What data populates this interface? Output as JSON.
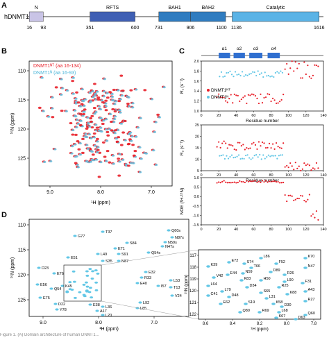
{
  "panel_a": {
    "letter": "A",
    "protein_label": "hDNMT1",
    "domains": [
      {
        "name": "N",
        "start": 16,
        "end": 93,
        "color": "#c9c4e6"
      },
      {
        "name": "RFTS",
        "start": 351,
        "end": 600,
        "color": "#3f5fb4"
      },
      {
        "name": "BAH1",
        "start": 731,
        "end": 906,
        "color": "#2f7cc0"
      },
      {
        "name": "BAH2",
        "start": 906,
        "end": 1100,
        "color": "#2f7cc0"
      },
      {
        "name": "Catalytic",
        "start": 1136,
        "end": 1616,
        "color": "#5ab3e6"
      }
    ],
    "tick_labels": [
      "16",
      "93",
      "351",
      "600",
      "731",
      "906",
      "1100",
      "1136",
      "1616"
    ]
  },
  "panel_b": {
    "letter": "B",
    "legend": [
      {
        "label": "DNMT1ᴺᵀ (aa 16-134)",
        "color": "#e8202a"
      },
      {
        "label": "DNMT1ᴺ (aa 16-93)",
        "color": "#63c7e6"
      }
    ],
    "xlabel": "¹H (ppm)",
    "ylabel": "¹⁵N (ppm)",
    "xticks": [
      "9.0",
      "8.0",
      "7.0"
    ],
    "yticks": [
      "110",
      "115",
      "120",
      "125"
    ]
  },
  "panel_c": {
    "letter": "C",
    "helices": [
      "α1",
      "α2",
      "α3",
      "α4"
    ],
    "xlabel": "Residue number",
    "xticks": [
      "0",
      "20",
      "40",
      "60",
      "80",
      "100",
      "120",
      "140"
    ],
    "plot1": {
      "ylabel": "R₁ (s⁻¹)",
      "yticks": [
        "1.0",
        "1.2",
        "1.4",
        "1.6",
        "1.8",
        "2.0"
      ],
      "legend": [
        "DNMT1ᴺᵀ",
        "DNMT1ᴺ"
      ]
    },
    "plot2": {
      "ylabel": "R₂ (s⁻¹)",
      "yticks": [
        "5",
        "10",
        "15",
        "20",
        "25"
      ]
    },
    "plot3": {
      "ylabel": "NOE (¹H-¹⁵N)",
      "yticks": [
        "-1.5",
        "-1.0",
        "-0.5",
        "0.0",
        "0.5",
        "1.0"
      ]
    }
  },
  "panel_d": {
    "letter": "D",
    "xlabel": "¹H (ppm)",
    "ylabel": "¹⁵N (ppm)",
    "xticks": [
      "9.0",
      "8.0",
      "7.0"
    ],
    "yticks": [
      "110",
      "115",
      "120",
      "125"
    ],
    "labels": [
      "T37",
      "Q60s",
      "N87s",
      "N59s",
      "N47s",
      "Q54s",
      "G77",
      "S84",
      "E71",
      "S91",
      "E51",
      "L49",
      "S35",
      "N87",
      "D23",
      "E76",
      "E32",
      "R33",
      "L53",
      "E56",
      "E40",
      "I57",
      "T13",
      "K45",
      "Q54",
      "V24",
      "E75",
      "L92",
      "L85",
      "D22",
      "E38",
      "Y78",
      "L36",
      "A17",
      "L20"
    ],
    "inset": {
      "xticks": [
        "8.6",
        "8.4",
        "8.2",
        "8.0",
        "7.8"
      ],
      "yticks": [
        "117",
        "118",
        "119",
        "120",
        "121",
        "122"
      ],
      "xlabel": "¹H (ppm)",
      "ylabel": "¹⁵N (ppm)",
      "labels": [
        "L86",
        "K70",
        "E72",
        "S74",
        "F52",
        "N47",
        "K39",
        "T66",
        "N59",
        "E44",
        "D89",
        "R26",
        "V42",
        "K83",
        "H50",
        "L90",
        "F31",
        "L64",
        "D34",
        "R25",
        "L79",
        "S65",
        "K88",
        "A43",
        "C41",
        "D48",
        "L31",
        "R27",
        "E62",
        "S19",
        "K58",
        "D30",
        "Q80",
        "R69",
        "L68",
        "K67",
        "D63",
        "Q60"
      ]
    }
  },
  "caption_text": "Figure 1. (A) Domain architecture of human DNMT1..."
}
